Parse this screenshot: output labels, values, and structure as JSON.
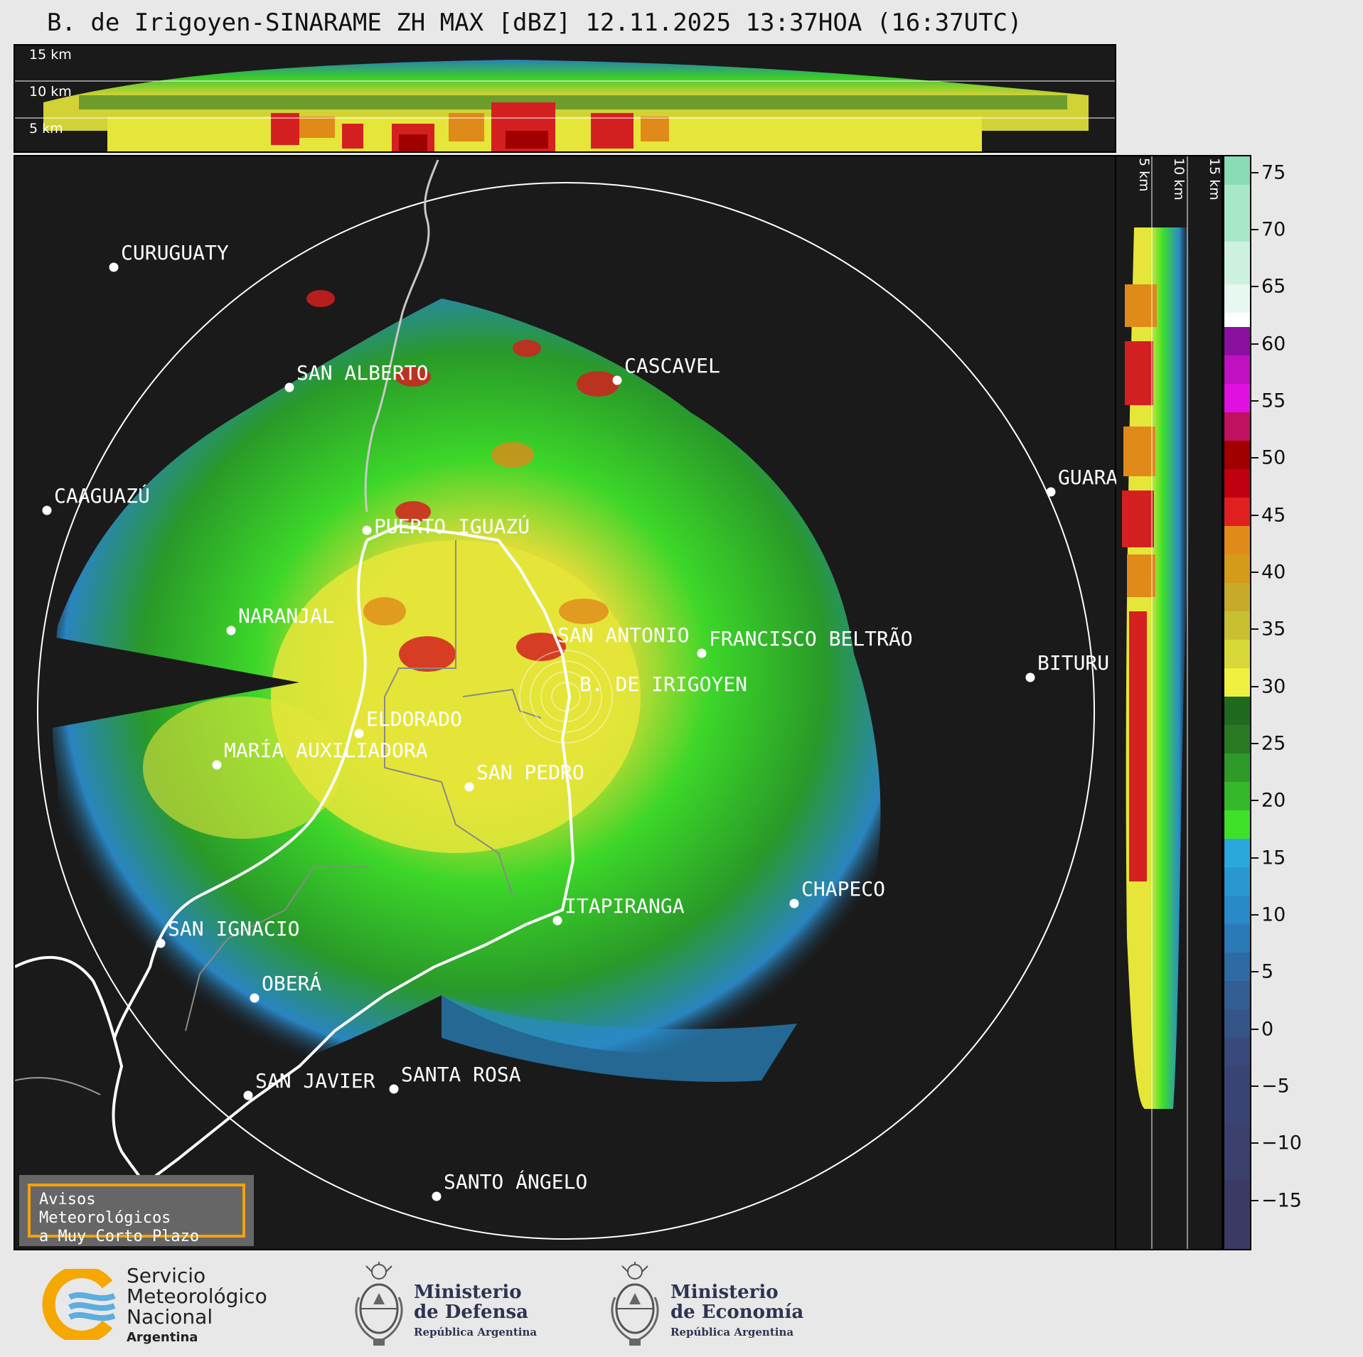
{
  "title": "B. de Irigoyen-SINARAME ZH MAX [dBZ] 12.11.2025 13:37HOA (16:37UTC)",
  "top_profile": {
    "labels": [
      "15 km",
      "10 km",
      "5 km"
    ]
  },
  "side_profile": {
    "labels": [
      "5 km",
      "10 km",
      "15 km"
    ]
  },
  "colorbar": {
    "ticks": [
      "75",
      "70",
      "65",
      "60",
      "55",
      "50",
      "45",
      "40",
      "35",
      "30",
      "25",
      "20",
      "15",
      "10",
      "5",
      "0",
      "−5",
      "−10",
      "−15"
    ],
    "colors": {
      "low": "#3b3f6b",
      "blue": "#2a8ac8",
      "cyan": "#2aa8dc",
      "green": "#3ee02a",
      "darkgreen": "#2a7a24",
      "yellow": "#e6e63a",
      "orange": "#e08a1a",
      "red": "#d42020",
      "darkred": "#a00000",
      "magenta": "#e010e0",
      "purple": "#8a10a0",
      "white": "#ffffff",
      "mint": "#8adcb4"
    }
  },
  "cities": [
    {
      "name": "CURUGUATY"
    },
    {
      "name": "SAN ALBERTO"
    },
    {
      "name": "CASCAVEL"
    },
    {
      "name": "CAAGUAZÚ"
    },
    {
      "name": "GUARA"
    },
    {
      "name": "PUERTO IGUAZÚ"
    },
    {
      "name": "NARANJAL"
    },
    {
      "name": "SAN ANTONIO"
    },
    {
      "name": "FRANCISCO BELTRÃO"
    },
    {
      "name": "BITURU"
    },
    {
      "name": "B. DE IRIGOYEN"
    },
    {
      "name": "ELDORADO"
    },
    {
      "name": "MARÍA AUXILIADORA"
    },
    {
      "name": "SAN PEDRO"
    },
    {
      "name": "ITAPIRANGA"
    },
    {
      "name": "CHAPECO"
    },
    {
      "name": "SAN IGNACIO"
    },
    {
      "name": "OBERÁ"
    },
    {
      "name": "SAN JAVIER"
    },
    {
      "name": "SANTA ROSA"
    },
    {
      "name": "SANTO ÁNGELO"
    }
  ],
  "alert_box": {
    "line1": "Avisos Meteorológicos",
    "line2": "a Muy Corto Plazo"
  },
  "footer": {
    "smn": {
      "line1": "Servicio",
      "line2": "Meteorológico",
      "line3": "Nacional",
      "line4": "Argentina"
    },
    "defensa": {
      "line1": "Ministerio",
      "line2": "de Defensa",
      "line3": "República Argentina"
    },
    "economia": {
      "line1": "Ministerio",
      "line2": "de Economía",
      "line3": "República Argentina"
    }
  }
}
